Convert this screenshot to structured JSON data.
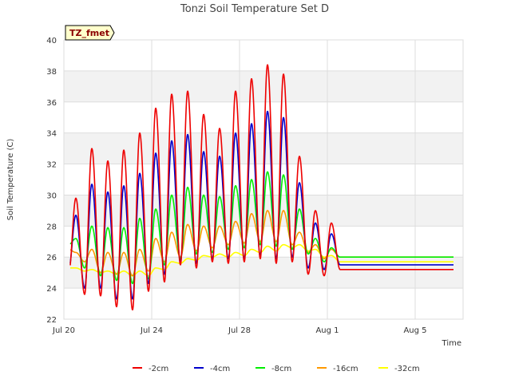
{
  "chart_data": {
    "type": "line",
    "title": "Tonzi Soil Temperature Set D",
    "xlabel": "Time",
    "ylabel": "Soil Temperature (C)",
    "badge": "TZ_fmet",
    "xlim_days": [
      0,
      25
    ],
    "ylim": [
      22,
      40
    ],
    "yticks": [
      22,
      24,
      26,
      28,
      30,
      32,
      34,
      36,
      38,
      40
    ],
    "xticks": [
      {
        "day": 0,
        "label": "Jul 20"
      },
      {
        "day": 5.5,
        "label": "Jul 24"
      },
      {
        "day": 11,
        "label": "Jul 28"
      },
      {
        "day": 16.5,
        "label": "Aug 1"
      },
      {
        "day": 22,
        "label": "Aug 5"
      }
    ],
    "grid": true,
    "legend_position": "bottom",
    "series": [
      {
        "name": "-2cm",
        "color": "#ee0000",
        "peaks": [
          29.8,
          33.0,
          32.2,
          32.9,
          34.0,
          35.6,
          36.5,
          36.7,
          35.2,
          34.3,
          36.7,
          37.5,
          38.4,
          37.8,
          32.5,
          29.0,
          28.2
        ],
        "troughs": [
          24.9,
          23.6,
          23.5,
          22.8,
          22.6,
          23.8,
          24.4,
          25.5,
          25.3,
          25.7,
          25.6,
          25.7,
          25.9,
          25.6,
          25.7,
          24.9,
          24.8,
          25.2
        ]
      },
      {
        "name": "-4cm",
        "color": "#0000cc",
        "peaks": [
          28.7,
          30.7,
          30.2,
          30.6,
          31.4,
          32.7,
          33.5,
          33.9,
          32.8,
          32.5,
          34.0,
          34.6,
          35.4,
          35.0,
          30.8,
          28.2,
          27.5
        ],
        "troughs": [
          25.2,
          24.0,
          24.0,
          23.3,
          23.3,
          24.3,
          24.9,
          25.7,
          25.6,
          25.9,
          25.9,
          25.9,
          26.1,
          25.9,
          26.0,
          25.3,
          25.2,
          25.5
        ]
      },
      {
        "name": "-8cm",
        "color": "#00ee00",
        "peaks": [
          27.2,
          28.0,
          27.9,
          27.9,
          28.5,
          29.1,
          30.0,
          30.5,
          30.0,
          29.9,
          30.6,
          31.0,
          31.5,
          31.3,
          29.1,
          27.2,
          26.6
        ],
        "troughs": [
          26.8,
          25.3,
          24.8,
          24.5,
          24.3,
          24.6,
          25.5,
          25.9,
          26.2,
          26.3,
          26.5,
          26.6,
          26.8,
          26.7,
          26.5,
          26.2,
          25.7,
          26.0
        ]
      },
      {
        "name": "-16cm",
        "color": "#ff9900",
        "peaks": [
          26.3,
          26.5,
          26.3,
          26.3,
          26.5,
          27.2,
          27.6,
          28.1,
          28.0,
          28.0,
          28.3,
          28.8,
          29.0,
          29.0,
          27.6,
          26.8,
          26.5
        ],
        "troughs": [
          26.5,
          25.7,
          25.0,
          24.9,
          24.8,
          25.1,
          25.7,
          26.0,
          26.4,
          26.6,
          26.8,
          26.9,
          27.0,
          27.0,
          26.8,
          26.3,
          25.9,
          26.0
        ]
      },
      {
        "name": "-32cm",
        "color": "#ffff00",
        "peaks": [
          25.3,
          25.2,
          25.1,
          25.1,
          25.1,
          25.3,
          25.7,
          25.9,
          26.1,
          26.2,
          26.3,
          26.5,
          26.7,
          26.8,
          26.8,
          26.5,
          26.1
        ],
        "troughs": [
          25.3,
          25.1,
          25.0,
          24.9,
          24.8,
          24.8,
          25.2,
          25.6,
          25.8,
          26.0,
          26.0,
          26.1,
          26.3,
          26.4,
          26.6,
          26.4,
          26.0,
          25.7
        ]
      }
    ]
  }
}
